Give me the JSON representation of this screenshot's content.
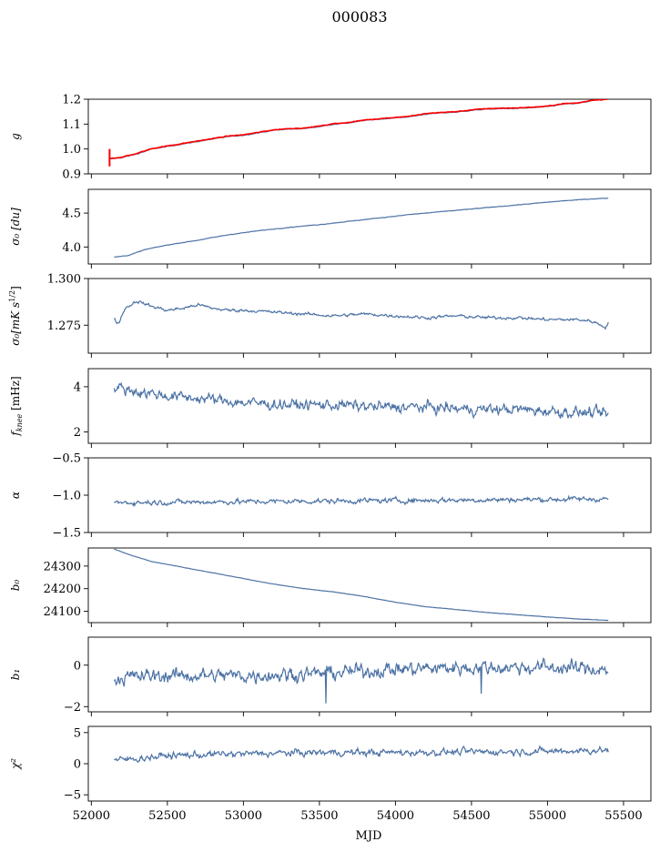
{
  "figure": {
    "title": "000083",
    "xlabel": "MJD",
    "line_color": "#4c72a4",
    "overlay_color": "#ff0000"
  },
  "chart_data": [
    {
      "type": "line",
      "id": "g",
      "ylabel": "g",
      "xlim": [
        51980,
        55680
      ],
      "ylim": [
        0.9,
        1.2
      ],
      "yticks": [
        "0.9",
        "1.0",
        "1.1",
        "1.2"
      ],
      "noise": 0.002,
      "series": [
        {
          "color": "#4c72a4",
          "x": [
            52120,
            52200,
            52300,
            52400,
            52500,
            52600,
            52700,
            52800,
            52900,
            53000,
            53100,
            53200,
            53300,
            53400,
            53500,
            53600,
            53700,
            53800,
            53900,
            54000,
            54100,
            54200,
            54300,
            54400,
            54500,
            54600,
            54700,
            54800,
            54900,
            55000,
            55100,
            55200,
            55300,
            55400
          ],
          "y": [
            0.96,
            0.965,
            0.98,
            1.0,
            1.01,
            1.02,
            1.03,
            1.04,
            1.05,
            1.055,
            1.065,
            1.075,
            1.08,
            1.082,
            1.09,
            1.1,
            1.105,
            1.115,
            1.12,
            1.125,
            1.13,
            1.14,
            1.145,
            1.148,
            1.155,
            1.16,
            1.162,
            1.163,
            1.166,
            1.17,
            1.18,
            1.183,
            1.195,
            1.2
          ]
        },
        {
          "color": "#ff0000",
          "x": [
            52120,
            52200,
            52300,
            52400,
            52500,
            52600,
            52700,
            52800,
            52900,
            53000,
            53100,
            53200,
            53300,
            53400,
            53500,
            53600,
            53700,
            53800,
            53900,
            54000,
            54100,
            54200,
            54300,
            54400,
            54500,
            54600,
            54700,
            54800,
            54900,
            55000,
            55100,
            55200,
            55300,
            55400
          ],
          "y": [
            0.962,
            0.967,
            0.982,
            1.002,
            1.012,
            1.022,
            1.032,
            1.042,
            1.052,
            1.057,
            1.067,
            1.077,
            1.082,
            1.084,
            1.092,
            1.102,
            1.107,
            1.117,
            1.122,
            1.127,
            1.132,
            1.142,
            1.147,
            1.15,
            1.157,
            1.162,
            1.164,
            1.165,
            1.168,
            1.172,
            1.182,
            1.185,
            1.197,
            1.2
          ]
        }
      ],
      "spike": {
        "x": 52120,
        "y_low": 0.93,
        "y_high": 1.0
      }
    },
    {
      "type": "line",
      "id": "sigma0",
      "ylabel": "σ₀ [du]",
      "xlim": [
        51980,
        55680
      ],
      "ylim": [
        3.75,
        4.85
      ],
      "yticks": [
        "4.0",
        "4.5"
      ],
      "noise": 0.006,
      "series": [
        {
          "color": "#4c72a4",
          "x": [
            52150,
            52250,
            52350,
            52500,
            52700,
            52900,
            53100,
            53300,
            53500,
            53700,
            53900,
            54100,
            54300,
            54500,
            54700,
            54900,
            55100,
            55300,
            55400
          ],
          "y": [
            3.85,
            3.88,
            3.96,
            4.03,
            4.1,
            4.18,
            4.24,
            4.29,
            4.33,
            4.38,
            4.43,
            4.48,
            4.52,
            4.56,
            4.6,
            4.64,
            4.68,
            4.71,
            4.72
          ]
        }
      ]
    },
    {
      "type": "line",
      "id": "sigma0_phys",
      "ylabel": "σ₀[mK s",
      "ylabel_sup": "1/2",
      "ylabel_end": "]",
      "xlim": [
        51980,
        55680
      ],
      "ylim": [
        1.26,
        1.3
      ],
      "yticks": [
        "1.275",
        "1.300"
      ],
      "noise": 0.0012,
      "series": [
        {
          "color": "#4c72a4",
          "x": [
            52150,
            52180,
            52220,
            52300,
            52400,
            52500,
            52600,
            52700,
            52800,
            52900,
            53000,
            53200,
            53400,
            53600,
            53800,
            54000,
            54200,
            54400,
            54600,
            54800,
            55000,
            55200,
            55300,
            55380,
            55400
          ],
          "y": [
            1.278,
            1.276,
            1.284,
            1.288,
            1.285,
            1.283,
            1.284,
            1.286,
            1.284,
            1.283,
            1.283,
            1.282,
            1.281,
            1.28,
            1.281,
            1.28,
            1.279,
            1.28,
            1.279,
            1.279,
            1.278,
            1.278,
            1.277,
            1.274,
            1.276
          ]
        }
      ]
    },
    {
      "type": "line",
      "id": "fknee",
      "ylabel": "f",
      "ylabel_sub": "knee",
      "ylabel_end": " [mHz]",
      "xlim": [
        51980,
        55680
      ],
      "ylim": [
        1.5,
        4.8
      ],
      "yticks": [
        "2",
        "4"
      ],
      "noise": 0.35,
      "series": [
        {
          "color": "#4c72a4",
          "x": [
            52150,
            52300,
            52500,
            52700,
            53000,
            53300,
            53600,
            53900,
            54200,
            54500,
            54800,
            55100,
            55400
          ],
          "y": [
            4.0,
            3.8,
            3.6,
            3.5,
            3.3,
            3.2,
            3.2,
            3.1,
            3.1,
            3.0,
            3.0,
            2.9,
            2.8
          ]
        }
      ]
    },
    {
      "type": "line",
      "id": "alpha",
      "ylabel": "α",
      "xlim": [
        51980,
        55680
      ],
      "ylim": [
        -1.5,
        -0.5
      ],
      "yticks": [
        "−1.5",
        "−1.0",
        "−0.5"
      ],
      "noise": 0.05,
      "series": [
        {
          "color": "#4c72a4",
          "x": [
            52150,
            55400
          ],
          "y": [
            -1.1,
            -1.05
          ]
        }
      ]
    },
    {
      "type": "line",
      "id": "b0",
      "ylabel": "b₀",
      "xlim": [
        51980,
        55680
      ],
      "ylim": [
        24050,
        24380
      ],
      "yticks": [
        "24100",
        "24200",
        "24300"
      ],
      "noise": 1.0,
      "series": [
        {
          "color": "#4c72a4",
          "x": [
            52150,
            52250,
            52400,
            52600,
            52800,
            53000,
            53200,
            53400,
            53600,
            53800,
            54000,
            54200,
            54400,
            54600,
            54800,
            55000,
            55200,
            55400
          ],
          "y": [
            24375,
            24350,
            24320,
            24295,
            24270,
            24245,
            24220,
            24200,
            24185,
            24165,
            24140,
            24120,
            24108,
            24095,
            24085,
            24075,
            24066,
            24060
          ]
        }
      ]
    },
    {
      "type": "line",
      "id": "b1",
      "ylabel": "b₁",
      "xlim": [
        51980,
        55680
      ],
      "ylim": [
        -2.25,
        1.35
      ],
      "yticks": [
        "−2",
        "0"
      ],
      "noise": 0.5,
      "series": [
        {
          "color": "#4c72a4",
          "x": [
            52150,
            52500,
            53000,
            53500,
            54000,
            54500,
            55000,
            55400
          ],
          "y": [
            -0.6,
            -0.5,
            -0.5,
            -0.4,
            -0.2,
            -0.1,
            -0.1,
            -0.2
          ]
        }
      ]
    },
    {
      "type": "line",
      "id": "chi2",
      "ylabel": "χ²",
      "xlim": [
        51980,
        55680
      ],
      "ylim": [
        -6,
        6
      ],
      "yticks": [
        "−5",
        "0",
        "5"
      ],
      "xticks": [
        "52000",
        "52500",
        "53000",
        "53500",
        "54000",
        "54500",
        "55000",
        "55500"
      ],
      "xtick_values": [
        52000,
        52500,
        53000,
        53500,
        54000,
        54500,
        55000,
        55500
      ],
      "noise": 0.8,
      "series": [
        {
          "color": "#4c72a4",
          "x": [
            52150,
            52500,
            53000,
            53500,
            54000,
            54500,
            55000,
            55400
          ],
          "y": [
            0.5,
            1.3,
            1.6,
            1.8,
            1.8,
            1.9,
            2.0,
            2.2
          ]
        }
      ]
    }
  ]
}
